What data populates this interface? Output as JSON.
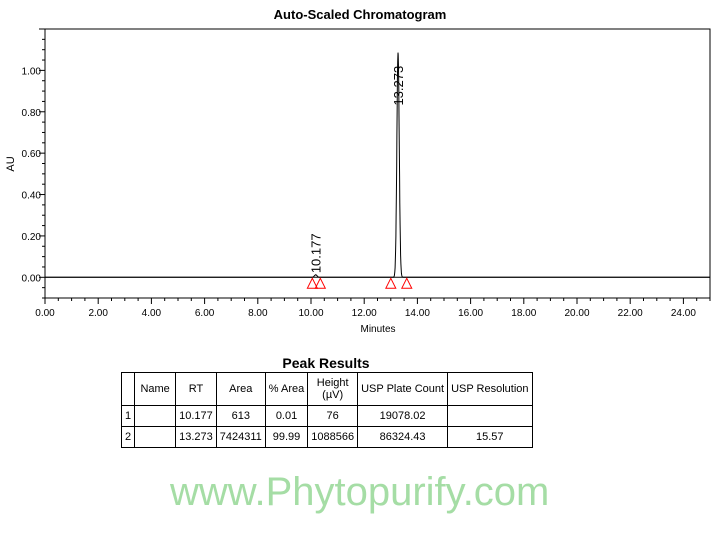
{
  "chart_data": {
    "type": "line",
    "title": "Auto-Scaled Chromatogram",
    "xlabel": "Minutes",
    "ylabel": "AU",
    "xlim": [
      0,
      25
    ],
    "ylim": [
      -0.1,
      1.2
    ],
    "xticks": [
      "0.00",
      "2.00",
      "4.00",
      "6.00",
      "8.00",
      "10.00",
      "12.00",
      "14.00",
      "16.00",
      "18.00",
      "20.00",
      "22.00",
      "24.00"
    ],
    "yticks": [
      "0.00",
      "0.20",
      "0.40",
      "0.60",
      "0.80",
      "1.00"
    ],
    "peaks": [
      {
        "rt": 10.177,
        "label": "10.177",
        "height": 8e-05,
        "start": 10.05,
        "end": 10.35
      },
      {
        "rt": 13.273,
        "label": "13.273",
        "height": 1.0886,
        "start": 13.0,
        "end": 13.6
      }
    ],
    "grid": false
  },
  "table": {
    "title": "Peak Results",
    "headers": [
      "",
      "Name",
      "RT",
      "Area",
      "% Area",
      "Height (µV)",
      "USP Plate Count",
      "USP Resolution"
    ],
    "rows": [
      [
        "1",
        "",
        "10.177",
        "613",
        "0.01",
        "76",
        "19078.02",
        ""
      ],
      [
        "2",
        "",
        "13.273",
        "7424311",
        "99.99",
        "1088566",
        "86324.43",
        "15.57"
      ]
    ]
  },
  "watermark": "www.Phytopurify.com",
  "colors": {
    "trace": "#000000",
    "marker": "#ff0000",
    "watermark": "#7fcf7f"
  }
}
